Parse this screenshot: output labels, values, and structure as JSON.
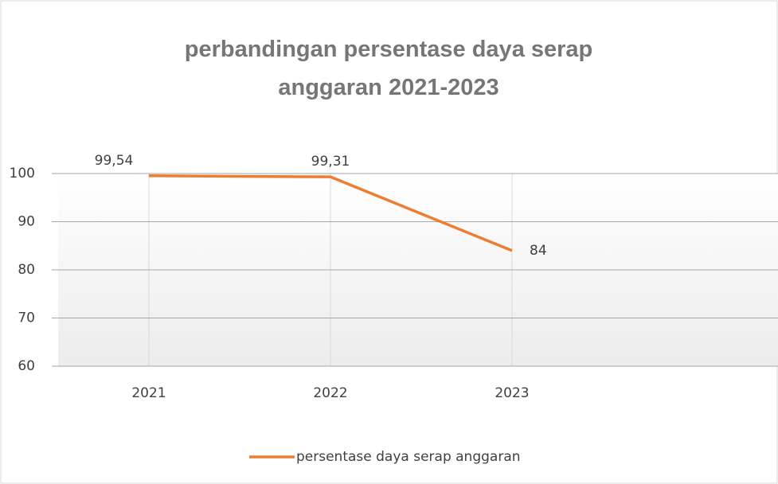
{
  "chart_data": {
    "type": "line",
    "title": "perbandingan persentase daya serap anggaran 2021-2023",
    "categories": [
      "2021",
      "2022",
      "2023"
    ],
    "series": [
      {
        "name": "persentase daya serap anggaran",
        "color": "#ed7d31",
        "values": [
          99.54,
          99.31,
          84
        ],
        "value_labels": [
          "99,54",
          "99,31",
          "84"
        ]
      }
    ],
    "ylim": [
      60,
      100
    ],
    "yticks": [
      60,
      70,
      80,
      90,
      100
    ],
    "grid": true,
    "legend": "bottom"
  }
}
